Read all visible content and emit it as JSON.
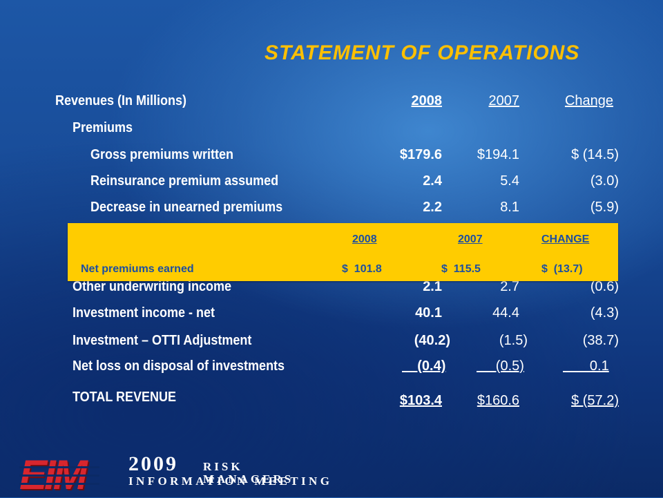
{
  "title": "STATEMENT OF OPERATIONS",
  "header": {
    "label": "Revenues (In Millions)",
    "col_2008": "2008",
    "col_2007": "2007",
    "col_change": "Change"
  },
  "section_premiums": "Premiums",
  "rows": {
    "gross": {
      "label": "Gross premiums written",
      "v2008": "$179.6",
      "v2007": "$194.1",
      "change": "$  (14.5)"
    },
    "reins": {
      "label": "Reinsurance premium assumed",
      "v2008": "2.4",
      "v2007": "5.4",
      "change": "(3.0)"
    },
    "decrease": {
      "label": "Decrease in unearned premiums",
      "v2008": "2.2",
      "v2007": "8.1",
      "change": "(5.9)"
    },
    "other": {
      "label": "Other underwriting income",
      "v2008": "2.1",
      "v2007": "2.7",
      "change": "(0.6)"
    },
    "invest": {
      "label": "Investment income -  net",
      "v2008": "40.1",
      "v2007": "44.4",
      "change": "(4.3)"
    },
    "otti": {
      "label": "Investment – OTTI Adjustment",
      "v2008": "(40.2)",
      "v2007": "(1.5)",
      "change": "(38.7)"
    },
    "netloss": {
      "label": "Net loss on disposal of investments",
      "v2008": "    (0.4)",
      "v2007": "     (0.5)",
      "change": "       0.1"
    },
    "total": {
      "label": "TOTAL REVENUE",
      "v2008": "$103.4",
      "v2007": "$160.6",
      "change": "$  (57.2)"
    }
  },
  "overlay": {
    "col_2008": "2008",
    "col_2007": "2007",
    "col_change": "CHANGE",
    "label": "Net premiums earned",
    "v2008": "$  101.8",
    "v2007": "$  115.5",
    "change": "$  (13.7)"
  },
  "logo": {
    "brand": "EIM",
    "year": "2009",
    "line1": "RISK MANAGERS",
    "line2": "INFORMATION MEETING"
  },
  "colors": {
    "title": "#ffc000",
    "overlay_bg": "#ffcc00",
    "overlay_text": "#1d4fa0",
    "logo_red": "#d8262e"
  }
}
